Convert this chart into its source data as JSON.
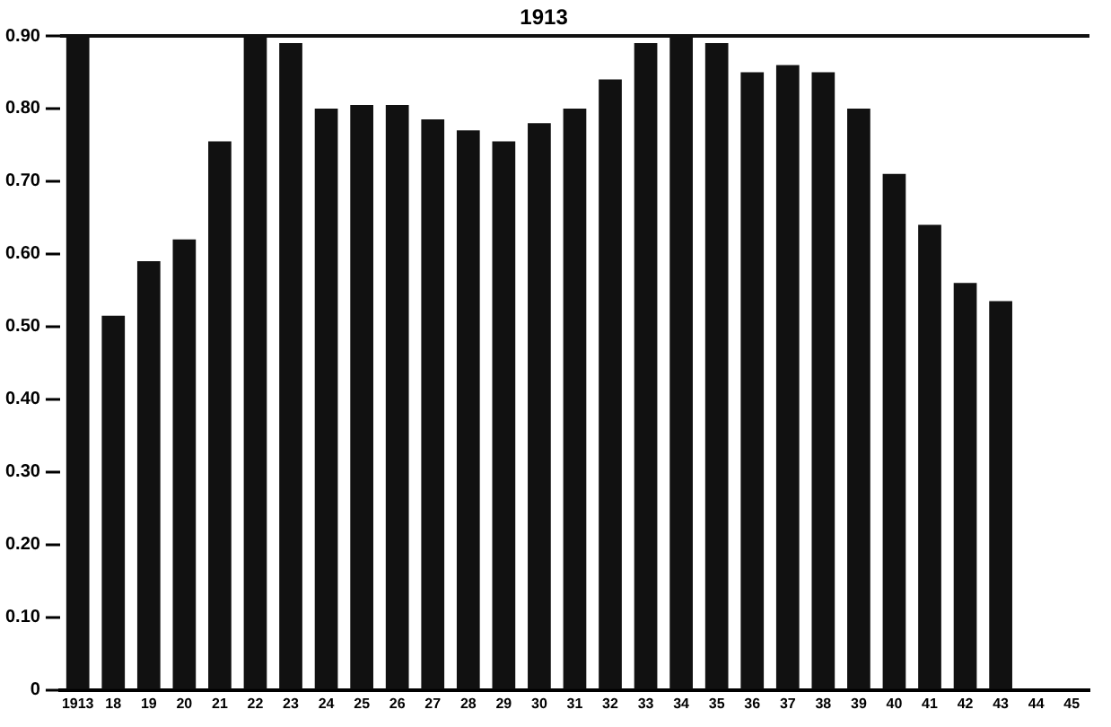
{
  "chart_data": {
    "type": "bar",
    "categories": [
      "1913",
      "18",
      "19",
      "20",
      "21",
      "22",
      "23",
      "24",
      "25",
      "26",
      "27",
      "28",
      "29",
      "30",
      "31",
      "32",
      "33",
      "34",
      "35",
      "36",
      "37",
      "38",
      "39",
      "40",
      "41",
      "42",
      "43",
      "44",
      "45"
    ],
    "values": [
      0.9,
      0.515,
      0.59,
      0.62,
      0.755,
      0.9,
      0.89,
      0.8,
      0.805,
      0.805,
      0.785,
      0.77,
      0.755,
      0.78,
      0.8,
      0.84,
      0.89,
      0.9,
      0.89,
      0.85,
      0.86,
      0.85,
      0.8,
      0.71,
      0.64,
      0.56,
      0.535,
      null,
      null
    ],
    "color": "#111111",
    "ylim": [
      0,
      0.9
    ],
    "yticks": [
      0,
      {
        "value": 0.1,
        "label": "0.10"
      },
      {
        "value": 0.2,
        "label": "0.20"
      },
      {
        "value": 0.3,
        "label": "0.30"
      },
      {
        "value": 0.4,
        "label": "0.40"
      },
      {
        "value": 0.5,
        "label": "0.50"
      },
      {
        "value": 0.6,
        "label": "0.60"
      },
      {
        "value": 0.7,
        "label": "0.70"
      },
      {
        "value": 0.8,
        "label": "0.80"
      },
      {
        "value": 0.9,
        "label": "0.90"
      }
    ],
    "ref_lines": [
      {
        "axis": "y",
        "value": 0.9,
        "color": "#111111"
      }
    ],
    "annotations": [
      "1913"
    ],
    "grid": false,
    "legend": false
  }
}
